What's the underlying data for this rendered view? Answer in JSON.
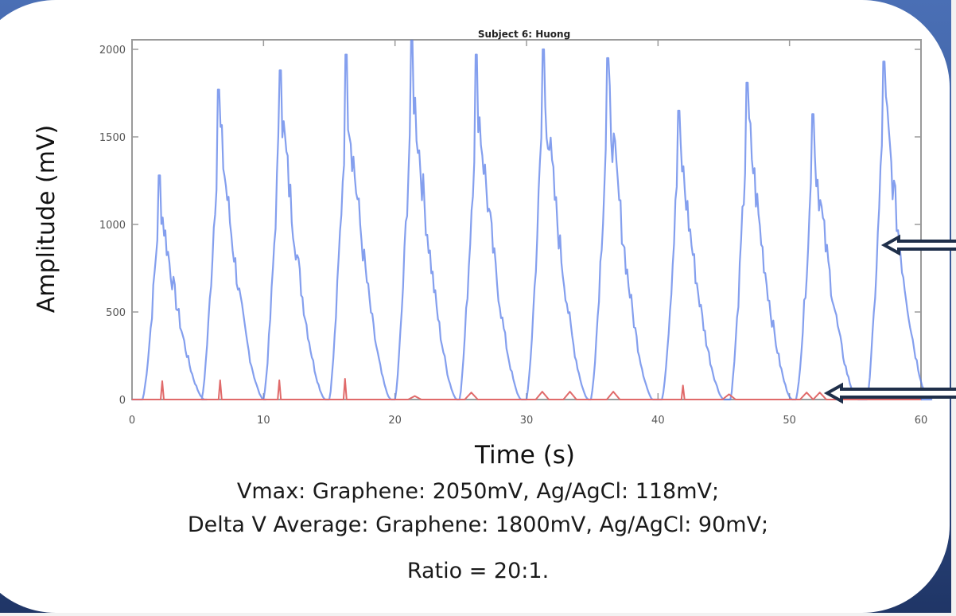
{
  "chart_data": {
    "type": "line",
    "title": "Subject 6: Huong",
    "xlabel": "Time (s)",
    "ylabel": "Amplitude (mV)",
    "xlim": [
      0,
      60
    ],
    "ylim": [
      0,
      2000
    ],
    "x_ticks": [
      0,
      10,
      20,
      30,
      40,
      50,
      60
    ],
    "y_ticks": [
      0,
      500,
      1000,
      1500,
      2000
    ],
    "grid": false,
    "legend": "none (arrows point to each trace)",
    "series": [
      {
        "name": "Graphene electrode",
        "color": "#5b7fe8",
        "peaks": [
          {
            "t": 2.1,
            "v": 1280
          },
          {
            "t": 6.6,
            "v": 1770
          },
          {
            "t": 11.3,
            "v": 1880
          },
          {
            "t": 16.3,
            "v": 1970
          },
          {
            "t": 21.3,
            "v": 2050
          },
          {
            "t": 26.2,
            "v": 1970
          },
          {
            "t": 31.3,
            "v": 2000
          },
          {
            "t": 36.2,
            "v": 1950
          },
          {
            "t": 41.6,
            "v": 1650
          },
          {
            "t": 46.8,
            "v": 1810
          },
          {
            "t": 51.8,
            "v": 1630
          },
          {
            "t": 57.2,
            "v": 1930
          }
        ]
      },
      {
        "name": "Ag/AgCl electrode",
        "color": "#e06a6a",
        "peaks": [
          {
            "t": 2.3,
            "v": 105
          },
          {
            "t": 6.7,
            "v": 110
          },
          {
            "t": 11.2,
            "v": 110
          },
          {
            "t": 16.2,
            "v": 118
          },
          {
            "t": 21.5,
            "v": 20
          },
          {
            "t": 25.8,
            "v": 40
          },
          {
            "t": 31.2,
            "v": 45
          },
          {
            "t": 33.3,
            "v": 45
          },
          {
            "t": 36.6,
            "v": 45
          },
          {
            "t": 41.9,
            "v": 80
          },
          {
            "t": 45.4,
            "v": 30
          },
          {
            "t": 51.3,
            "v": 40
          },
          {
            "t": 52.3,
            "v": 40
          }
        ]
      }
    ],
    "annotations": [
      {
        "type": "arrow",
        "points_to": "Graphene electrode",
        "at": {
          "t": 57.5,
          "v": 880
        }
      },
      {
        "type": "arrow",
        "points_to": "Ag/AgCl electrode",
        "at": {
          "t": 53,
          "v": 40
        }
      }
    ]
  },
  "axes": {
    "title": "Subject 6: Huong",
    "xlabel": "Time (s)",
    "ylabel": "Amplitude (mV)",
    "x_tick_labels": [
      "0",
      "10",
      "20",
      "30",
      "40",
      "50",
      "60"
    ],
    "y_tick_labels": [
      "0",
      "500",
      "1000",
      "1500",
      "2000"
    ]
  },
  "caption": {
    "line1": "Vmax: Graphene: 2050mV, Ag/AgCl: 118mV;",
    "line2": "Delta V Average: Graphene: 1800mV, Ag/AgCl: 90mV;",
    "line3": "Ratio = 20:1."
  },
  "colors": {
    "graphene": "#5b7fe8",
    "agagcl": "#e06a6a",
    "arrow": "#1f2f4a",
    "frame": "#9a9a9a"
  }
}
